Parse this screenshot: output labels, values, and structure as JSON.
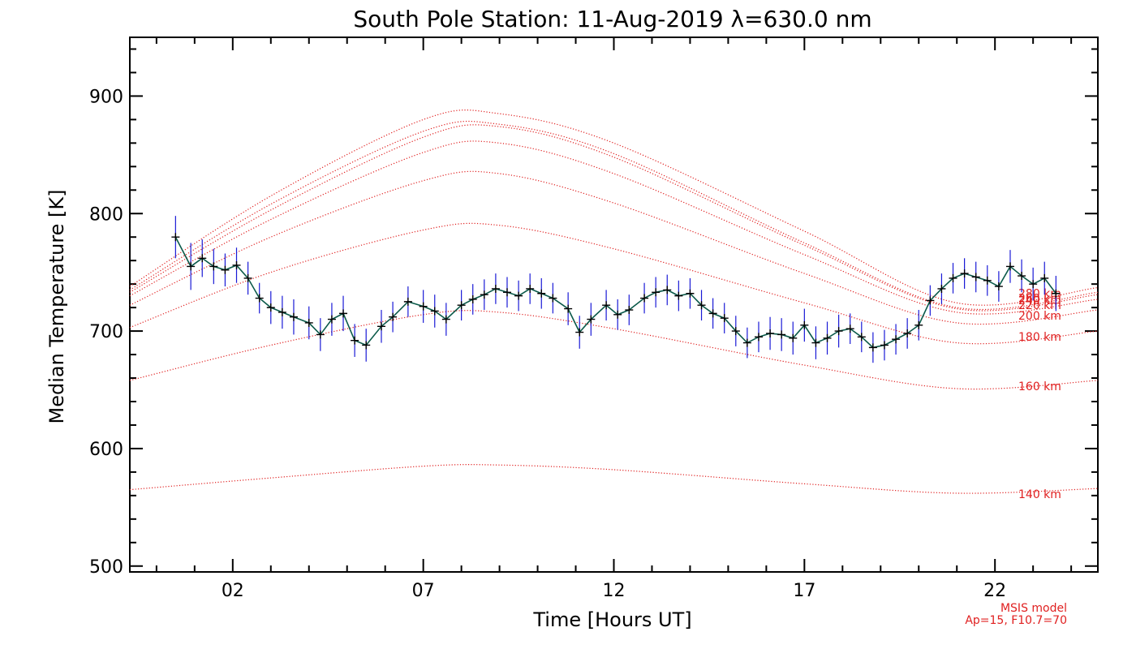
{
  "chart_data": {
    "type": "line",
    "title": "South Pole Station: 11-Aug-2019 λ=630.0 nm",
    "xlabel": "Time [Hours UT]",
    "ylabel": "Median Temperature [K]",
    "xlim": [
      -0.7,
      24.7
    ],
    "ylim": [
      495,
      950
    ],
    "xticks": [
      2,
      7,
      12,
      17,
      22
    ],
    "xtick_labels": [
      "02",
      "07",
      "12",
      "17",
      "22"
    ],
    "yticks": [
      500,
      600,
      700,
      800,
      900
    ],
    "ytick_labels": [
      "500",
      "600",
      "700",
      "800",
      "900"
    ],
    "grid": false,
    "colors": {
      "data_line": "#0b5a4a",
      "error_bar": "#1a1ad6",
      "marker": "#000000",
      "model": "#e02020",
      "axis": "#000000"
    },
    "msis_note": [
      "MSIS model",
      "Ap=15, F10.7=70"
    ],
    "msis_curves": [
      {
        "name": "140 km",
        "label": "140 km",
        "x": [
          -0.7,
          3,
          7,
          9,
          12,
          17,
          21,
          24.7
        ],
        "values": [
          565,
          575,
          585,
          586,
          582,
          570,
          562,
          566
        ]
      },
      {
        "name": "160 km",
        "label": "160 km",
        "x": [
          -0.7,
          3,
          7,
          9,
          12,
          17,
          21,
          24.7
        ],
        "values": [
          658,
          688,
          714,
          716,
          702,
          671,
          651,
          658
        ]
      },
      {
        "name": "180 km",
        "label": "180 km",
        "x": [
          -0.7,
          3,
          7,
          9,
          12,
          17,
          21,
          24.7
        ],
        "values": [
          703,
          750,
          786,
          790,
          770,
          724,
          690,
          700
        ]
      },
      {
        "name": "200 km",
        "label": "200 km",
        "x": [
          -0.7,
          3,
          7,
          9,
          12,
          17,
          21,
          24.7
        ],
        "values": [
          722,
          780,
          828,
          834,
          809,
          749,
          707,
          718
        ]
      },
      {
        "name": "220 km",
        "label": "220 km",
        "x": [
          -0.7,
          3,
          7,
          9,
          12,
          17,
          21,
          24.7
        ],
        "values": [
          730,
          795,
          852,
          860,
          834,
          765,
          716,
          727
        ]
      },
      {
        "name": "240 km",
        "label": "240 km",
        "x": [
          -0.7,
          3,
          7,
          9,
          12,
          17,
          21,
          24.7
        ],
        "values": [
          733,
          803,
          865,
          874,
          848,
          773,
          719,
          731
        ]
      },
      {
        "name": "260 km",
        "label": "260 km",
        "x": [
          -0.7,
          3,
          7,
          9,
          12,
          17,
          21,
          24.7
        ],
        "values": [
          735,
          808,
          870,
          876,
          851,
          775,
          720,
          733
        ]
      },
      {
        "name": "280 km",
        "label": "280 km",
        "x": [
          -0.7,
          3,
          7,
          9,
          12,
          17,
          21,
          24.7
        ],
        "values": [
          738,
          815,
          880,
          885,
          860,
          785,
          724,
          737
        ]
      }
    ],
    "series": [
      {
        "name": "Median temperature",
        "x": [
          0.5,
          0.9,
          1.2,
          1.5,
          1.8,
          2.1,
          2.4,
          2.7,
          3.0,
          3.3,
          3.6,
          4.0,
          4.3,
          4.6,
          4.9,
          5.2,
          5.5,
          5.9,
          6.2,
          6.6,
          7.0,
          7.3,
          7.6,
          8.0,
          8.3,
          8.6,
          8.9,
          9.2,
          9.5,
          9.8,
          10.1,
          10.4,
          10.8,
          11.1,
          11.4,
          11.8,
          12.1,
          12.4,
          12.8,
          13.1,
          13.4,
          13.7,
          14.0,
          14.3,
          14.6,
          14.9,
          15.2,
          15.5,
          15.8,
          16.1,
          16.4,
          16.7,
          17.0,
          17.3,
          17.6,
          17.9,
          18.2,
          18.5,
          18.8,
          19.1,
          19.4,
          19.7,
          20.0,
          20.3,
          20.6,
          20.9,
          21.2,
          21.5,
          21.8,
          22.1,
          22.4,
          22.7,
          23.0,
          23.3,
          23.6
        ],
        "values": [
          780,
          755,
          762,
          755,
          752,
          756,
          745,
          728,
          720,
          716,
          712,
          707,
          697,
          710,
          715,
          692,
          688,
          704,
          712,
          725,
          721,
          717,
          710,
          722,
          727,
          731,
          736,
          733,
          730,
          736,
          732,
          728,
          719,
          699,
          710,
          722,
          714,
          718,
          728,
          733,
          735,
          730,
          732,
          722,
          715,
          711,
          700,
          690,
          695,
          698,
          697,
          694,
          705,
          690,
          694,
          700,
          702,
          695,
          686,
          688,
          693,
          698,
          705,
          726,
          736,
          745,
          749,
          746,
          743,
          738,
          755,
          747,
          740,
          745,
          732
        ],
        "errors": [
          18,
          20,
          16,
          15,
          14,
          15,
          14,
          13,
          14,
          14,
          15,
          14,
          14,
          14,
          15,
          14,
          14,
          14,
          13,
          13,
          14,
          14,
          14,
          13,
          13,
          13,
          13,
          13,
          13,
          13,
          13,
          13,
          14,
          14,
          14,
          13,
          13,
          13,
          13,
          13,
          13,
          13,
          13,
          13,
          13,
          13,
          13,
          13,
          13,
          14,
          14,
          14,
          14,
          14,
          14,
          14,
          13,
          13,
          13,
          13,
          13,
          13,
          13,
          13,
          13,
          13,
          13,
          13,
          13,
          13,
          14,
          14,
          14,
          14,
          15
        ]
      }
    ]
  }
}
